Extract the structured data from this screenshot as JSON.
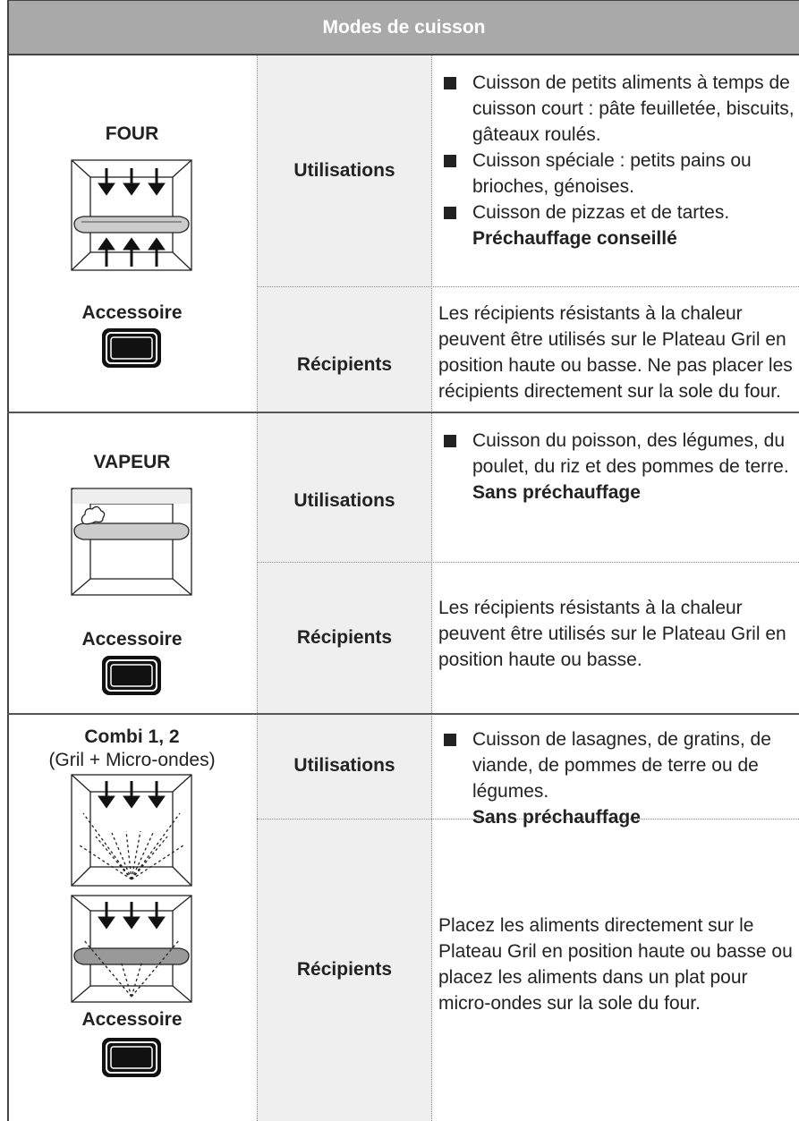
{
  "header": {
    "title": "Modes de cuisson"
  },
  "sections": [
    {
      "mode": "FOUR",
      "accessory_label": "Accessoire",
      "rows": [
        {
          "label": "Utilisations",
          "items": [
            "Cuisson de petits aliments à temps de cuisson court : pâte feuilletée, biscuits, gâteaux roulés.",
            "Cuisson spéciale : petits pains ou brioches, génoises.",
            "Cuisson de pizzas et de tartes."
          ],
          "note": "Préchauffage conseillé"
        },
        {
          "label": "Récipients",
          "text": "Les récipients résistants à la chaleur peuvent être utilisés sur le Plateau Gril en position haute ou basse. Ne pas placer les récipients directement sur la sole du four."
        }
      ]
    },
    {
      "mode": "VAPEUR",
      "accessory_label": "Accessoire",
      "rows": [
        {
          "label": "Utilisations",
          "items": [
            "Cuisson du poisson, des légumes, du poulet, du riz et des pommes de terre."
          ],
          "note": "Sans préchauffage"
        },
        {
          "label": "Récipients",
          "text": "Les récipients résistants à la chaleur peuvent être utilisés sur le Plateau Gril en position haute ou basse."
        }
      ]
    },
    {
      "mode": "Combi 1, 2",
      "subtitle": "(Gril + Micro-ondes)",
      "accessory_label": "Accessoire",
      "rows": [
        {
          "label": "Utilisations",
          "items": [
            "Cuisson de lasagnes, de gratins, de viande, de pommes de terre ou de légumes."
          ],
          "note": "Sans préchauffage"
        },
        {
          "label": "Récipients",
          "text": "Placez les aliments directement sur le Plateau Gril en position haute ou basse ou placez les aliments dans un plat pour micro-ondes sur la sole du four."
        }
      ]
    }
  ]
}
